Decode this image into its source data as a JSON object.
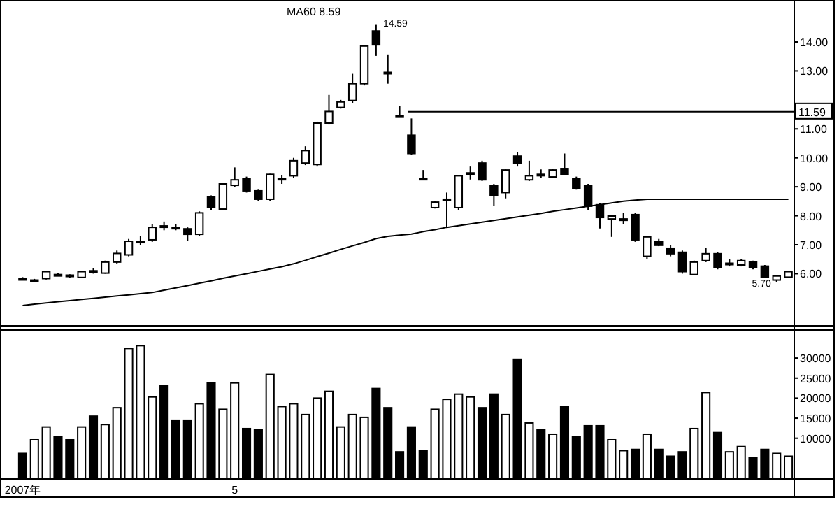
{
  "chart_data": [
    {
      "type": "candlestick",
      "categories": [
        null,
        null,
        null,
        null,
        null,
        null,
        null,
        null,
        null,
        null,
        null,
        null,
        null,
        null,
        null,
        null,
        null,
        null,
        null,
        null,
        null,
        null,
        null,
        null,
        null,
        null,
        null,
        null,
        null,
        null,
        null,
        null,
        null,
        null,
        null,
        null,
        null,
        null,
        null,
        null,
        null,
        null,
        null,
        null,
        null,
        null,
        null,
        null,
        null,
        null,
        null,
        null,
        null,
        null,
        null,
        null,
        null,
        null,
        null,
        null,
        null,
        null,
        null,
        null,
        null,
        null
      ],
      "ohlc": [
        [
          5.83,
          5.88,
          5.78,
          5.83
        ],
        [
          5.78,
          5.82,
          5.75,
          5.78
        ],
        [
          5.83,
          6.1,
          5.8,
          6.07
        ],
        [
          5.97,
          6.02,
          5.92,
          5.97
        ],
        [
          5.95,
          5.98,
          5.85,
          5.92
        ],
        [
          5.87,
          6.1,
          5.85,
          6.07
        ],
        [
          6.1,
          6.2,
          6.0,
          6.1
        ],
        [
          6.02,
          6.45,
          6.0,
          6.4
        ],
        [
          6.4,
          6.8,
          6.35,
          6.7
        ],
        [
          6.65,
          7.2,
          6.6,
          7.12
        ],
        [
          7.12,
          7.3,
          7.0,
          7.12
        ],
        [
          7.17,
          7.7,
          7.1,
          7.6
        ],
        [
          7.65,
          7.8,
          7.5,
          7.65
        ],
        [
          7.6,
          7.7,
          7.5,
          7.6
        ],
        [
          7.55,
          7.6,
          7.12,
          7.36
        ],
        [
          7.36,
          8.15,
          7.3,
          8.1
        ],
        [
          8.66,
          8.7,
          8.2,
          8.28
        ],
        [
          8.23,
          9.1,
          8.2,
          9.1
        ],
        [
          9.05,
          9.67,
          9.0,
          9.24
        ],
        [
          9.29,
          9.35,
          8.8,
          8.86
        ],
        [
          8.86,
          8.9,
          8.5,
          8.57
        ],
        [
          8.57,
          9.45,
          8.5,
          9.43
        ],
        [
          9.29,
          9.4,
          9.1,
          9.29
        ],
        [
          9.38,
          10.0,
          9.3,
          9.9
        ],
        [
          9.82,
          10.4,
          9.75,
          10.25
        ],
        [
          9.77,
          11.25,
          9.7,
          11.2
        ],
        [
          11.2,
          12.17,
          11.15,
          11.6
        ],
        [
          11.74,
          12.0,
          11.7,
          11.93
        ],
        [
          11.98,
          12.9,
          11.9,
          12.56
        ],
        [
          12.56,
          13.9,
          12.5,
          13.86
        ],
        [
          14.38,
          14.59,
          13.52,
          13.9
        ],
        [
          12.95,
          13.57,
          12.56,
          12.95
        ],
        [
          11.45,
          11.8,
          11.45,
          11.45
        ],
        [
          10.78,
          11.36,
          10.1,
          10.15
        ],
        [
          9.29,
          9.58,
          9.29,
          9.29
        ],
        [
          8.28,
          8.5,
          8.25,
          8.47
        ],
        [
          8.57,
          8.8,
          7.6,
          8.57
        ],
        [
          8.28,
          9.4,
          8.2,
          9.38
        ],
        [
          9.48,
          9.7,
          9.25,
          9.48
        ],
        [
          9.82,
          9.9,
          9.2,
          9.24
        ],
        [
          9.05,
          9.1,
          8.33,
          8.71
        ],
        [
          8.8,
          9.6,
          8.6,
          9.58
        ],
        [
          10.06,
          10.2,
          9.7,
          9.82
        ],
        [
          9.24,
          9.9,
          9.2,
          9.38
        ],
        [
          9.43,
          9.6,
          9.3,
          9.43
        ],
        [
          9.34,
          9.62,
          9.3,
          9.58
        ],
        [
          9.63,
          10.15,
          9.4,
          9.43
        ],
        [
          9.29,
          9.35,
          8.9,
          8.95
        ],
        [
          9.05,
          9.1,
          8.2,
          8.33
        ],
        [
          8.38,
          8.45,
          7.56,
          7.94
        ],
        [
          7.89,
          8.0,
          7.27,
          7.99
        ],
        [
          7.89,
          8.1,
          7.7,
          7.89
        ],
        [
          8.04,
          8.1,
          7.1,
          7.17
        ],
        [
          6.6,
          7.3,
          6.5,
          7.27
        ],
        [
          7.12,
          7.2,
          6.95,
          6.98
        ],
        [
          6.88,
          7.0,
          6.6,
          6.69
        ],
        [
          6.74,
          6.8,
          6.0,
          6.07
        ],
        [
          5.97,
          6.45,
          5.95,
          6.4
        ],
        [
          6.45,
          6.9,
          6.4,
          6.69
        ],
        [
          6.69,
          6.75,
          6.15,
          6.21
        ],
        [
          6.36,
          6.5,
          6.25,
          6.36
        ],
        [
          6.3,
          6.5,
          6.25,
          6.45
        ],
        [
          6.4,
          6.45,
          6.15,
          6.21
        ],
        [
          6.26,
          6.3,
          5.85,
          5.88
        ],
        [
          5.78,
          5.95,
          5.7,
          5.92
        ],
        [
          5.88,
          6.1,
          5.85,
          6.07
        ]
      ],
      "series": [
        {
          "type": "line",
          "color": "#000000",
          "values": [
            4.9,
            4.95,
            4.99,
            5.03,
            5.07,
            5.11,
            5.15,
            5.19,
            5.23,
            5.27,
            5.31,
            5.35,
            5.43,
            5.51,
            5.59,
            5.67,
            5.75,
            5.84,
            5.92,
            6.0,
            6.08,
            6.16,
            6.24,
            6.34,
            6.46,
            6.59,
            6.71,
            6.84,
            6.96,
            7.08,
            7.21,
            7.29,
            7.33,
            7.37,
            7.45,
            7.52,
            7.6,
            7.66,
            7.72,
            7.78,
            7.84,
            7.9,
            7.96,
            8.02,
            8.08,
            8.15,
            8.21,
            8.27,
            8.33,
            8.38,
            8.44,
            8.5,
            8.54,
            8.57,
            8.57,
            8.57,
            8.57,
            8.57,
            8.57,
            8.57,
            8.57,
            8.57,
            8.57,
            8.57,
            8.57,
            8.57
          ]
        }
      ],
      "ylim": [
        4.2,
        15.4
      ],
      "yticks": [
        {
          "value": 6,
          "label": "6.00"
        },
        {
          "value": 7,
          "label": "7.00"
        },
        {
          "value": 8,
          "label": "8.00"
        },
        {
          "value": 9,
          "label": "9.00"
        },
        {
          "value": 10,
          "label": "10.00"
        },
        {
          "value": 11,
          "label": "11.00"
        },
        {
          "value": 13,
          "label": "13.00"
        },
        {
          "value": 14,
          "label": "14.00"
        }
      ],
      "ref_lines": [
        {
          "axis": "y",
          "value": 11.59,
          "label": "11.59",
          "color": "#000000"
        }
      ],
      "annotations": [
        "MA60 8.59",
        "14.59",
        "5.70"
      ],
      "tick_labels": "y"
    },
    {
      "type": "bar",
      "categories": [
        "2007年",
        null,
        null,
        null,
        null,
        null,
        null,
        null,
        null,
        null,
        null,
        null,
        null,
        null,
        null,
        null,
        null,
        null,
        "5",
        null,
        null,
        null,
        null,
        null,
        null,
        null,
        null,
        null,
        null,
        null,
        null,
        null,
        null,
        null,
        null,
        null,
        null,
        null,
        null,
        null,
        null,
        null,
        null,
        null,
        null,
        null,
        null,
        null,
        null,
        null,
        null,
        null,
        null,
        null,
        null,
        null,
        null,
        null,
        null,
        null,
        null,
        null,
        null,
        null,
        null,
        null
      ],
      "values": [
        6200,
        9600,
        12800,
        10300,
        9600,
        12800,
        15500,
        13400,
        17600,
        32400,
        33100,
        20300,
        23100,
        14500,
        14500,
        18600,
        23800,
        17200,
        23800,
        12400,
        12100,
        25900,
        17900,
        18600,
        15900,
        20000,
        21700,
        12800,
        15900,
        15200,
        22400,
        17600,
        6600,
        12800,
        6900,
        17200,
        19700,
        21000,
        20300,
        17600,
        21000,
        15900,
        29700,
        13800,
        12100,
        11000,
        17900,
        10300,
        13100,
        13100,
        9600,
        6900,
        7200,
        11000,
        7200,
        5500,
        6600,
        12400,
        21400,
        11400,
        6600,
        7900,
        5200,
        7200,
        6200,
        5500
      ],
      "colors": [
        "#000000",
        "#ffffff",
        "#ffffff",
        "#000000",
        "#000000",
        "#ffffff",
        "#000000",
        "#ffffff",
        "#ffffff",
        "#ffffff",
        "#ffffff",
        "#ffffff",
        "#000000",
        "#000000",
        "#000000",
        "#ffffff",
        "#000000",
        "#ffffff",
        "#ffffff",
        "#000000",
        "#000000",
        "#ffffff",
        "#ffffff",
        "#ffffff",
        "#ffffff",
        "#ffffff",
        "#ffffff",
        "#ffffff",
        "#ffffff",
        "#ffffff",
        "#000000",
        "#000000",
        "#000000",
        "#000000",
        "#000000",
        "#ffffff",
        "#ffffff",
        "#ffffff",
        "#ffffff",
        "#000000",
        "#000000",
        "#ffffff",
        "#000000",
        "#ffffff",
        "#000000",
        "#ffffff",
        "#000000",
        "#000000",
        "#000000",
        "#000000",
        "#ffffff",
        "#ffffff",
        "#000000",
        "#ffffff",
        "#000000",
        "#000000",
        "#000000",
        "#ffffff",
        "#ffffff",
        "#000000",
        "#ffffff",
        "#ffffff",
        "#000000",
        "#000000",
        "#ffffff",
        "#ffffff"
      ],
      "ylim": [
        0,
        37000
      ],
      "yticks": [
        10000,
        15000,
        20000,
        25000,
        30000
      ]
    }
  ]
}
